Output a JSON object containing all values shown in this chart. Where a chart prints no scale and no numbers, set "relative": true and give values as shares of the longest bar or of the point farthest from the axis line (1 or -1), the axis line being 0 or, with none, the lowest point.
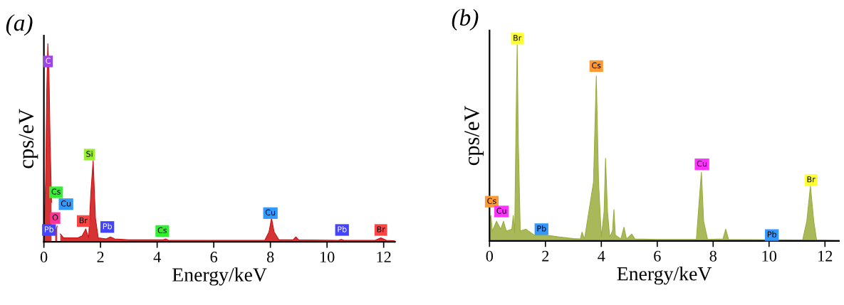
{
  "chart_data": [
    {
      "type": "area",
      "title": "(a)",
      "xlabel": "Energy/keV",
      "ylabel": "cps/eV",
      "relative": true,
      "xlim": [
        0,
        12.4
      ],
      "xticks": [
        0,
        2,
        4,
        6,
        8,
        10,
        12
      ],
      "tick_labels": "x",
      "grid": false,
      "legend": false,
      "series": [
        {
          "color": "#cc1010",
          "x": [
            0,
            0.06,
            0.1,
            0.14,
            0.18,
            0.22,
            0.27,
            0.32,
            0.4,
            0.47,
            0.52,
            0.58,
            0.7,
            0.9,
            1.2,
            1.35,
            1.48,
            1.58,
            1.66,
            1.74,
            1.82,
            1.92,
            2.2,
            2.35,
            2.5,
            3,
            4.2,
            4.3,
            4.4,
            5,
            7.8,
            7.95,
            8.04,
            8.13,
            8.3,
            8.8,
            8.9,
            9.0,
            10.4,
            10.5,
            10.6,
            11.7,
            11.9,
            12.1,
            12.4
          ],
          "values": [
            0.02,
            0.3,
            0.75,
            1.0,
            0.85,
            0.5,
            0.2,
            null,
            0.05,
            0.08,
            null,
            0.04,
            0.02,
            0.02,
            0.02,
            0.03,
            0.065,
            0.02,
            0.25,
            0.41,
            0.12,
            0.02,
            0.015,
            0.025,
            0.015,
            0.01,
            0.01,
            0.015,
            0.008,
            0.008,
            0.008,
            0.05,
            0.12,
            0.05,
            0.01,
            0.01,
            0.025,
            0.01,
            0.008,
            0.012,
            0.008,
            0.008,
            0.02,
            0.008,
            0.005
          ]
        }
      ],
      "annotations": [
        {
          "text": "C",
          "x": 0.15,
          "y": 0.91
        },
        {
          "text": "Cs",
          "x": 0.43,
          "y": 0.25
        },
        {
          "text": "Cu",
          "x": 0.78,
          "y": 0.19
        },
        {
          "text": "O",
          "x": 0.4,
          "y": 0.12
        },
        {
          "text": "Pb",
          "x": 0.18,
          "y": 0.06
        },
        {
          "text": "Br",
          "x": 1.39,
          "y": 0.105
        },
        {
          "text": "Si",
          "x": 1.61,
          "y": 0.44
        },
        {
          "text": "Pb",
          "x": 2.24,
          "y": 0.075
        },
        {
          "text": "Cs",
          "x": 4.18,
          "y": 0.055
        },
        {
          "text": "Cu",
          "x": 8.0,
          "y": 0.145
        },
        {
          "text": "Pb",
          "x": 10.53,
          "y": 0.06
        },
        {
          "text": "Br",
          "x": 11.9,
          "y": 0.06
        }
      ]
    },
    {
      "type": "area",
      "title": "(b)",
      "xlabel": "Energy/keV",
      "ylabel": "cps/eV",
      "relative": true,
      "xlim": [
        0,
        12.5
      ],
      "xticks": [
        0,
        2,
        4,
        6,
        8,
        10,
        12
      ],
      "tick_labels": "x",
      "grid": false,
      "legend": false,
      "series": [
        {
          "color": "#9aad3c",
          "x": [
            0,
            0.05,
            0.1,
            0.25,
            0.4,
            0.5,
            0.6,
            0.8,
            0.85,
            0.9,
            0.95,
            0.99,
            1.03,
            1.1,
            1.3,
            1.6,
            2,
            2.5,
            3,
            3.25,
            3.31,
            3.4,
            3.72,
            3.82,
            3.9,
            4.0,
            4.1,
            4.15,
            4.22,
            4.3,
            4.4,
            4.45,
            4.5,
            4.7,
            4.81,
            4.9,
            5.09,
            5.2,
            6,
            7.4,
            7.5,
            7.58,
            7.66,
            7.8,
            8.35,
            8.45,
            8.55,
            11.2,
            11.35,
            11.48,
            11.6,
            11.7,
            12.5
          ],
          "values": [
            0.1,
            0.13,
            0.05,
            0.1,
            0.06,
            0.1,
            0.05,
            0.06,
            0.13,
            0.04,
            0.6,
            1.0,
            0.5,
            0.05,
            0.06,
            0.03,
            0.03,
            0.02,
            0.012,
            0.01,
            0.045,
            0.01,
            0.3,
            0.84,
            0.3,
            0.02,
            0.15,
            0.42,
            0.15,
            0.02,
            0.05,
            0.16,
            0.03,
            0.01,
            0.07,
            0.01,
            0.035,
            0.01,
            0.008,
            0.008,
            0.2,
            0.35,
            0.1,
            0.008,
            0.01,
            0.06,
            0.008,
            0.005,
            0.1,
            0.28,
            0.1,
            0.005,
            0.002
          ]
        }
      ],
      "annotations": [
        {
          "text": "Br",
          "x": 0.99,
          "y": 1.03
        },
        {
          "text": "Cs",
          "x": 3.82,
          "y": 0.89
        },
        {
          "text": "Cs",
          "x": 0.08,
          "y": 0.2
        },
        {
          "text": "Cu",
          "x": 0.43,
          "y": 0.15
        },
        {
          "text": "Pb",
          "x": 1.86,
          "y": 0.06
        },
        {
          "text": "Cu",
          "x": 7.6,
          "y": 0.39
        },
        {
          "text": "Pb",
          "x": 10.1,
          "y": 0.03
        },
        {
          "text": "Br",
          "x": 11.5,
          "y": 0.31
        }
      ]
    }
  ]
}
